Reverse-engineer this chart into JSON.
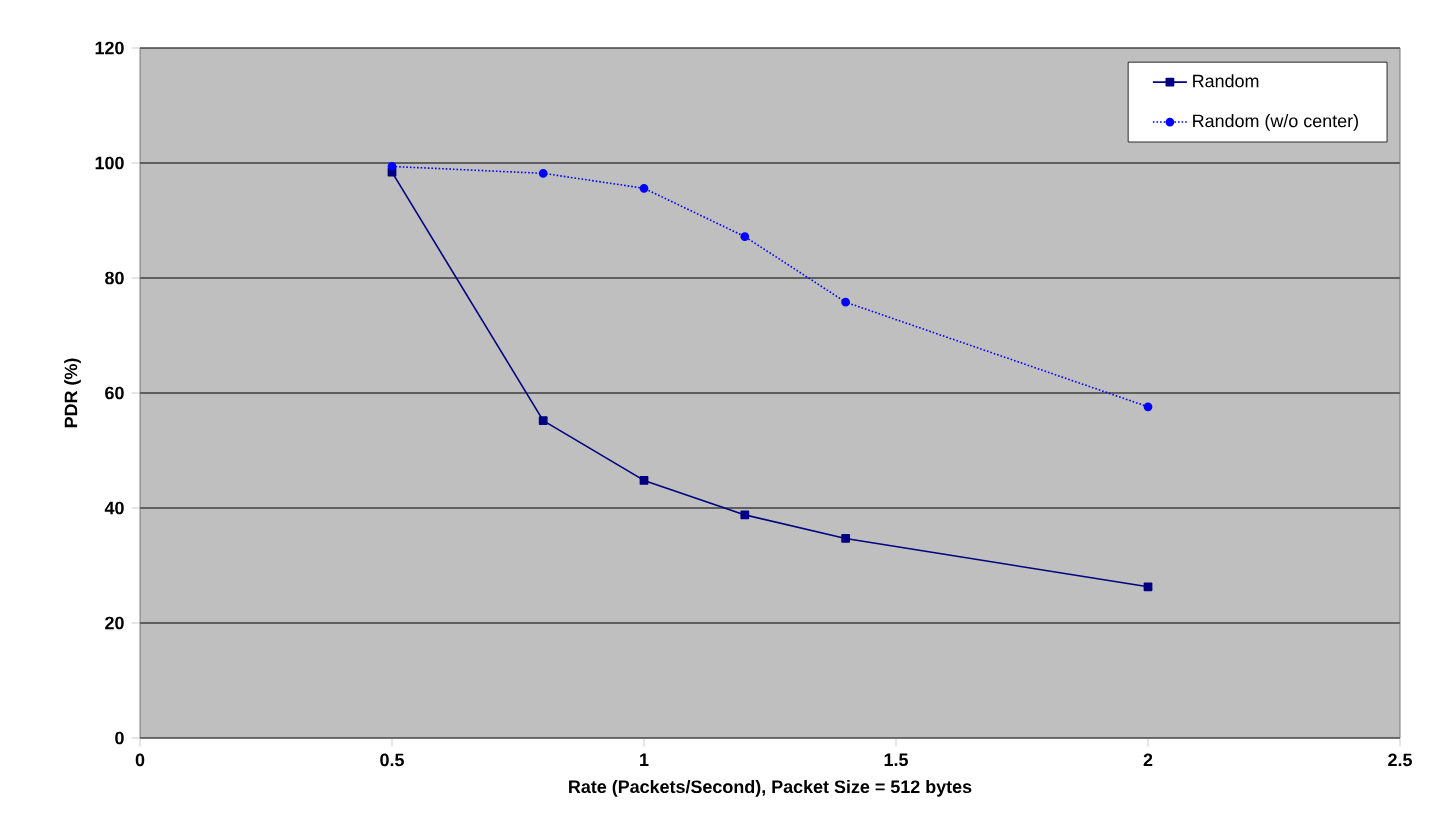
{
  "chart_data": {
    "type": "line",
    "xlabel": "Rate (Packets/Second), Packet Size = 512 bytes",
    "ylabel": "PDR (%)",
    "xlim": [
      0,
      2.5
    ],
    "xticks": [
      0,
      0.5,
      1,
      1.5,
      2,
      2.5
    ],
    "ylim": [
      0,
      120
    ],
    "yticks": [
      0,
      20,
      40,
      60,
      80,
      100,
      120
    ],
    "grid": "y",
    "legend": "top right",
    "series": [
      {
        "name": "Random",
        "color": "#000080",
        "marker": "square",
        "line_style": "solid",
        "x": [
          0.5,
          0.8,
          1.0,
          1.2,
          1.4,
          2.0
        ],
        "values": [
          98.4,
          55.2,
          44.8,
          38.8,
          34.7,
          26.3
        ]
      },
      {
        "name": "Random (w/o center)",
        "color": "#0000ff",
        "marker": "circle",
        "line_style": "dotted",
        "x": [
          0.5,
          0.8,
          1.0,
          1.2,
          1.4,
          2.0
        ],
        "values": [
          99.4,
          98.2,
          95.6,
          87.2,
          75.8,
          57.6
        ]
      }
    ]
  }
}
